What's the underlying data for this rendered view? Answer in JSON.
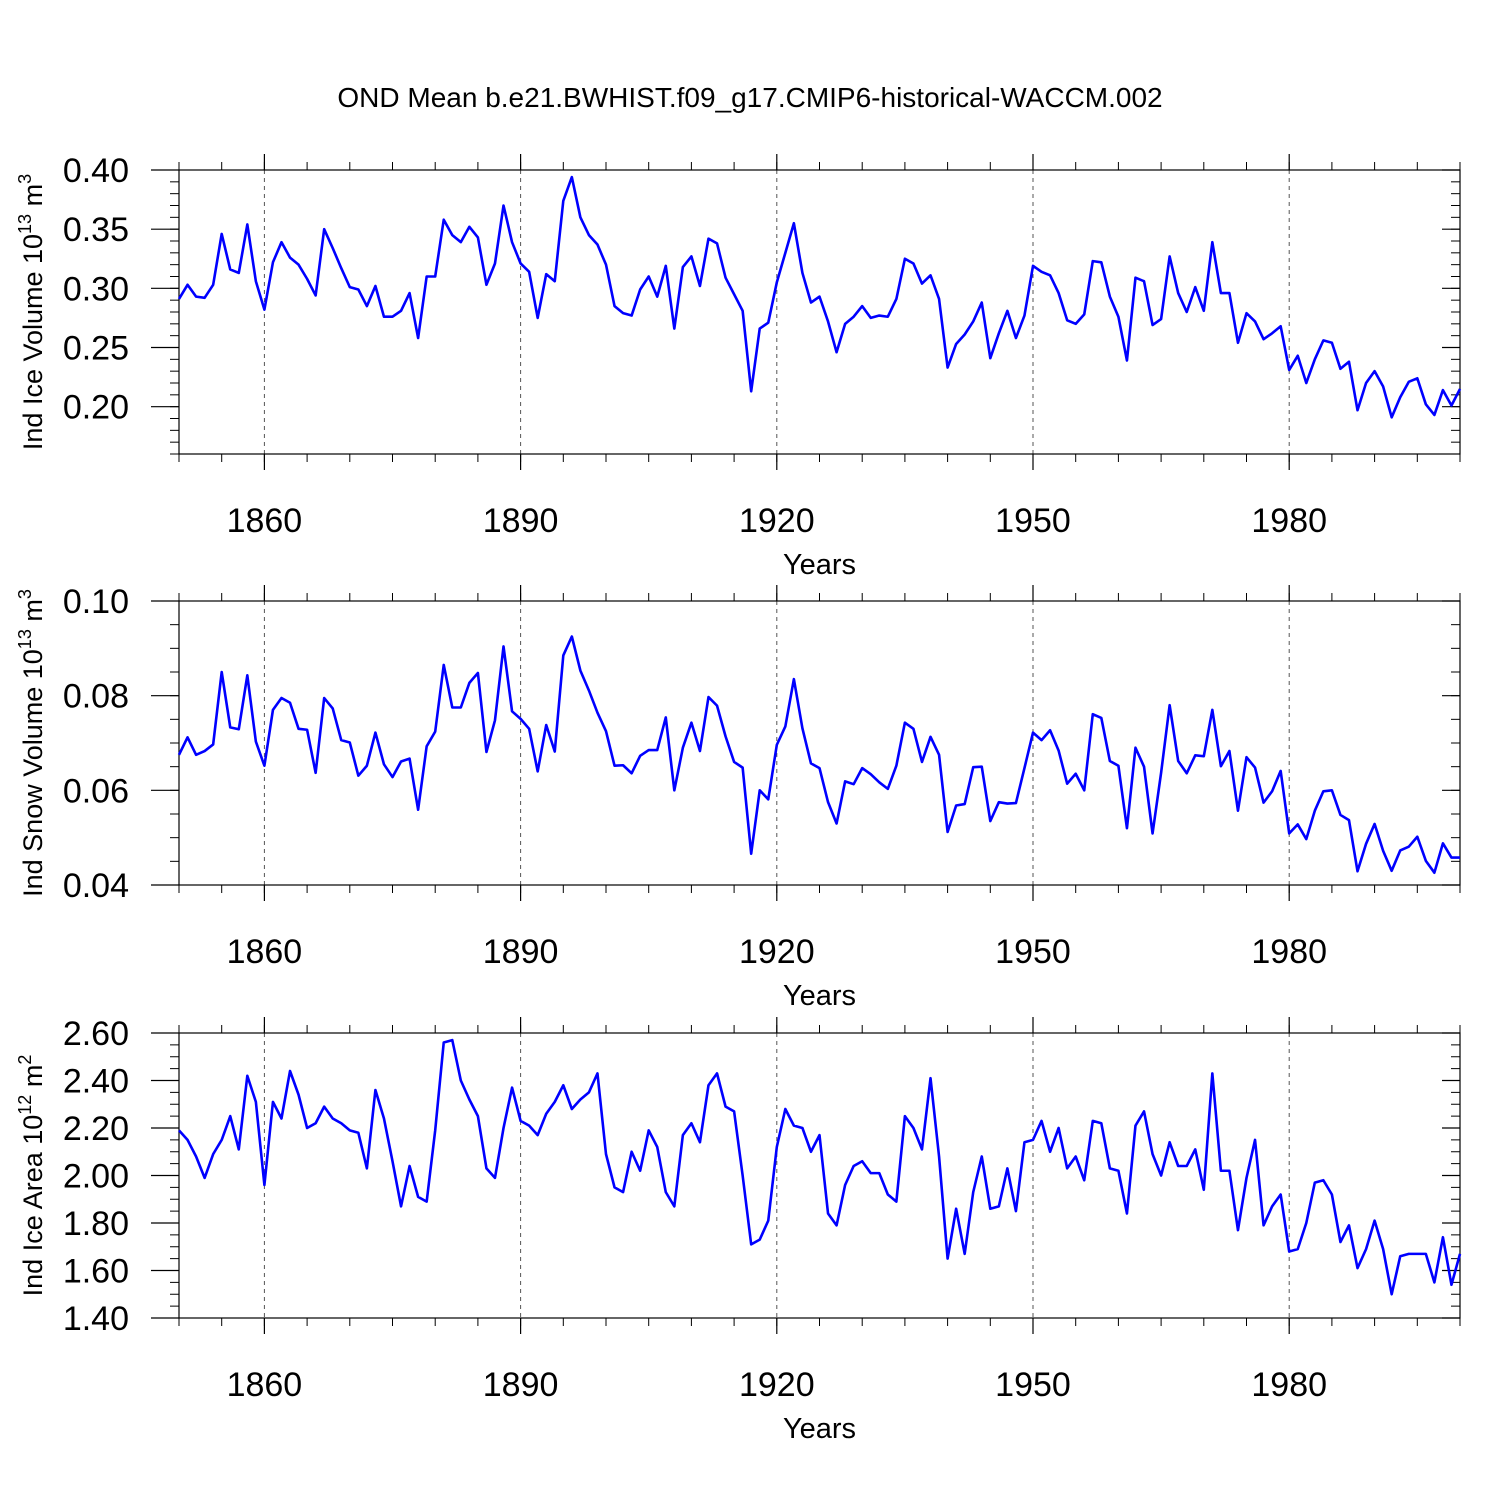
{
  "title": "OND Mean b.e21.BWHIST.f09_g17.CMIP6-historical-WACCM.002",
  "line_color": "#0000ff",
  "grid_color": "#555555",
  "chart_data": [
    {
      "type": "line",
      "name": "ind-ice-volume",
      "ylabel": {
        "main": "Ind Ice Volume 10",
        "sup1": "13",
        "mid": " m",
        "sup2": "3"
      },
      "xlabel": "Years",
      "xlim": [
        1850,
        2000
      ],
      "xticks": [
        1860,
        1890,
        1920,
        1950,
        1980
      ],
      "ylim": [
        0.16,
        0.4
      ],
      "yticks": [
        0.2,
        0.25,
        0.3,
        0.35,
        0.4
      ],
      "yticklabels": [
        "0.20",
        "0.25",
        "0.30",
        "0.35",
        "0.40"
      ],
      "yminor": 0.01,
      "x_start": 1850,
      "values": [
        0.291,
        0.303,
        0.293,
        0.292,
        0.303,
        0.346,
        0.316,
        0.313,
        0.354,
        0.306,
        0.282,
        0.322,
        0.339,
        0.326,
        0.32,
        0.308,
        0.294,
        0.35,
        0.334,
        0.317,
        0.301,
        0.299,
        0.285,
        0.302,
        0.276,
        0.276,
        0.281,
        0.296,
        0.258,
        0.31,
        0.31,
        0.358,
        0.345,
        0.339,
        0.352,
        0.343,
        0.303,
        0.321,
        0.37,
        0.339,
        0.321,
        0.314,
        0.275,
        0.312,
        0.306,
        0.374,
        0.394,
        0.36,
        0.345,
        0.337,
        0.32,
        0.285,
        0.279,
        0.277,
        0.299,
        0.31,
        0.293,
        0.319,
        0.266,
        0.318,
        0.327,
        0.302,
        0.342,
        0.338,
        0.309,
        0.295,
        0.281,
        0.213,
        0.266,
        0.271,
        0.305,
        0.33,
        0.355,
        0.313,
        0.288,
        0.293,
        0.272,
        0.246,
        0.27,
        0.276,
        0.285,
        0.275,
        0.277,
        0.276,
        0.291,
        0.325,
        0.321,
        0.304,
        0.311,
        0.291,
        0.233,
        0.253,
        0.261,
        0.272,
        0.288,
        0.241,
        0.262,
        0.281,
        0.258,
        0.277,
        0.319,
        0.314,
        0.311,
        0.296,
        0.273,
        0.27,
        0.278,
        0.323,
        0.322,
        0.293,
        0.276,
        0.239,
        0.309,
        0.306,
        0.269,
        0.274,
        0.327,
        0.296,
        0.28,
        0.301,
        0.281,
        0.339,
        0.296,
        0.296,
        0.254,
        0.279,
        0.272,
        0.257,
        0.262,
        0.268,
        0.231,
        0.243,
        0.22,
        0.24,
        0.256,
        0.254,
        0.232,
        0.238,
        0.197,
        0.22,
        0.23,
        0.217,
        0.191,
        0.208,
        0.221,
        0.224,
        0.202,
        0.193,
        0.214,
        0.201,
        0.215
      ]
    },
    {
      "type": "line",
      "name": "ind-snow-volume",
      "ylabel": {
        "main": "Ind Snow Volume 10",
        "sup1": "13",
        "mid": " m",
        "sup2": "3"
      },
      "xlabel": "Years",
      "xlim": [
        1850,
        2000
      ],
      "xticks": [
        1860,
        1890,
        1920,
        1950,
        1980
      ],
      "ylim": [
        0.04,
        0.1
      ],
      "yticks": [
        0.04,
        0.06,
        0.08,
        0.1
      ],
      "yticklabels": [
        "0.04",
        "0.06",
        "0.08",
        "0.10"
      ],
      "yminor": 0.005,
      "x_start": 1850,
      "values": [
        0.0675,
        0.0712,
        0.0675,
        0.0683,
        0.0697,
        0.085,
        0.0733,
        0.0729,
        0.0843,
        0.0703,
        0.0652,
        0.077,
        0.0795,
        0.0785,
        0.073,
        0.0728,
        0.0637,
        0.0795,
        0.0773,
        0.0706,
        0.0701,
        0.0631,
        0.0652,
        0.0722,
        0.0655,
        0.0628,
        0.0661,
        0.0667,
        0.0559,
        0.0693,
        0.0724,
        0.0865,
        0.0775,
        0.0775,
        0.0827,
        0.0848,
        0.0681,
        0.0748,
        0.0904,
        0.0767,
        0.0751,
        0.073,
        0.064,
        0.0738,
        0.0682,
        0.0885,
        0.0925,
        0.0853,
        0.0811,
        0.0764,
        0.0725,
        0.0652,
        0.0653,
        0.0636,
        0.0673,
        0.0685,
        0.0685,
        0.0754,
        0.06,
        0.069,
        0.0743,
        0.0683,
        0.0797,
        0.0779,
        0.0714,
        0.066,
        0.0648,
        0.0466,
        0.06,
        0.0581,
        0.0696,
        0.0735,
        0.0835,
        0.0731,
        0.0657,
        0.0647,
        0.0575,
        0.053,
        0.0619,
        0.0613,
        0.0647,
        0.0634,
        0.0617,
        0.0603,
        0.0652,
        0.0743,
        0.073,
        0.066,
        0.0713,
        0.0675,
        0.0512,
        0.0568,
        0.0571,
        0.0649,
        0.065,
        0.0535,
        0.0575,
        0.0572,
        0.0573,
        0.0647,
        0.0722,
        0.0706,
        0.0727,
        0.0684,
        0.0614,
        0.0635,
        0.06,
        0.0761,
        0.0753,
        0.0662,
        0.0652,
        0.052,
        0.069,
        0.065,
        0.0509,
        0.0637,
        0.078,
        0.0662,
        0.0636,
        0.0674,
        0.0672,
        0.077,
        0.0651,
        0.0683,
        0.0557,
        0.067,
        0.0648,
        0.0574,
        0.0598,
        0.0641,
        0.0509,
        0.0528,
        0.0497,
        0.0557,
        0.0598,
        0.06,
        0.0548,
        0.0537,
        0.0429,
        0.0487,
        0.0529,
        0.0472,
        0.043,
        0.0473,
        0.0481,
        0.0502,
        0.0451,
        0.0426,
        0.0488,
        0.0458,
        0.0458
      ]
    },
    {
      "type": "line",
      "name": "ind-ice-area",
      "ylabel": {
        "main": "Ind Ice Area 10",
        "sup1": "12",
        "mid": " m",
        "sup2": "2"
      },
      "xlabel": "Years",
      "xlim": [
        1850,
        2000
      ],
      "xticks": [
        1860,
        1890,
        1920,
        1950,
        1980
      ],
      "ylim": [
        1.4,
        2.6
      ],
      "yticks": [
        1.4,
        1.6,
        1.8,
        2.0,
        2.2,
        2.4,
        2.6
      ],
      "yticklabels": [
        "1.40",
        "1.60",
        "1.80",
        "2.00",
        "2.20",
        "2.40",
        "2.60"
      ],
      "yminor": 0.05,
      "x_start": 1850,
      "values": [
        2.19,
        2.15,
        2.08,
        1.99,
        2.09,
        2.15,
        2.25,
        2.11,
        2.42,
        2.31,
        1.96,
        2.31,
        2.24,
        2.44,
        2.34,
        2.2,
        2.22,
        2.29,
        2.24,
        2.22,
        2.19,
        2.18,
        2.03,
        2.36,
        2.24,
        2.06,
        1.87,
        2.04,
        1.91,
        1.89,
        2.19,
        2.56,
        2.57,
        2.4,
        2.32,
        2.25,
        2.03,
        1.99,
        2.2,
        2.37,
        2.23,
        2.21,
        2.17,
        2.26,
        2.31,
        2.38,
        2.28,
        2.32,
        2.35,
        2.43,
        2.09,
        1.95,
        1.93,
        2.1,
        2.02,
        2.19,
        2.12,
        1.93,
        1.87,
        2.17,
        2.22,
        2.14,
        2.38,
        2.43,
        2.29,
        2.27,
        2.0,
        1.71,
        1.73,
        1.81,
        2.12,
        2.28,
        2.21,
        2.2,
        2.1,
        2.17,
        1.84,
        1.79,
        1.96,
        2.04,
        2.06,
        2.01,
        2.01,
        1.92,
        1.89,
        2.25,
        2.2,
        2.11,
        2.41,
        2.08,
        1.65,
        1.86,
        1.67,
        1.93,
        2.08,
        1.86,
        1.87,
        2.03,
        1.85,
        2.14,
        2.15,
        2.23,
        2.1,
        2.2,
        2.03,
        2.08,
        1.98,
        2.23,
        2.22,
        2.03,
        2.02,
        1.84,
        2.21,
        2.27,
        2.09,
        2.0,
        2.14,
        2.04,
        2.04,
        2.11,
        1.94,
        2.43,
        2.02,
        2.02,
        1.77,
        1.99,
        2.15,
        1.79,
        1.87,
        1.92,
        1.68,
        1.69,
        1.8,
        1.97,
        1.98,
        1.92,
        1.72,
        1.79,
        1.61,
        1.69,
        1.81,
        1.69,
        1.5,
        1.66,
        1.67,
        1.67,
        1.67,
        1.55,
        1.74,
        1.54,
        1.67
      ]
    }
  ]
}
